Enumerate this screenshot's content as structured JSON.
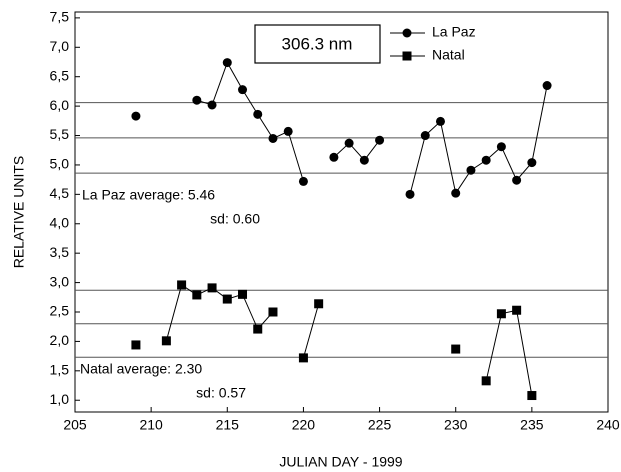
{
  "chart_data": {
    "type": "line",
    "x_label": "JULIAN DAY  -  1999",
    "y_label": "RELATIVE UNITS",
    "box_label": "306.3 nm",
    "xlim": [
      205,
      240
    ],
    "xticks": [
      205,
      210,
      215,
      220,
      225,
      230,
      235,
      240
    ],
    "ylim": [
      0.8,
      7.6
    ],
    "yticks": [
      {
        "value": 1.0,
        "label": "1,0"
      },
      {
        "value": 1.5,
        "label": "1,5"
      },
      {
        "value": 2.0,
        "label": "2,0"
      },
      {
        "value": 2.5,
        "label": "2,5"
      },
      {
        "value": 3.0,
        "label": "3,0"
      },
      {
        "value": 3.5,
        "label": "3,5"
      },
      {
        "value": 4.0,
        "label": "4,0"
      },
      {
        "value": 4.5,
        "label": "4,5"
      },
      {
        "value": 5.0,
        "label": "5,0"
      },
      {
        "value": 5.5,
        "label": "5,5"
      },
      {
        "value": 6.0,
        "label": "6,0"
      },
      {
        "value": 6.5,
        "label": "6,5"
      },
      {
        "value": 7.0,
        "label": "7,0"
      },
      {
        "value": 7.5,
        "label": "7,5"
      }
    ],
    "grid": false,
    "legend": "top-right",
    "series": [
      {
        "name": "La Paz",
        "color": "#000000",
        "marker": "circle",
        "x": [
          209,
          210,
          211,
          212,
          213,
          214,
          215,
          216,
          217,
          218,
          219,
          220,
          221,
          222,
          223,
          224,
          225,
          226,
          227,
          228,
          229,
          230,
          231,
          232,
          233,
          234,
          235,
          236
        ],
        "values": [
          5.83,
          null,
          null,
          null,
          6.1,
          6.02,
          6.74,
          6.28,
          5.86,
          5.45,
          5.57,
          4.72,
          null,
          5.13,
          5.37,
          5.08,
          5.42,
          null,
          4.5,
          5.5,
          5.74,
          4.52,
          4.91,
          5.08,
          5.31,
          4.74,
          5.04,
          6.35
        ]
      },
      {
        "name": "Natal",
        "color": "#000000",
        "marker": "square",
        "x": [
          209,
          210,
          211,
          212,
          213,
          214,
          215,
          216,
          217,
          218,
          219,
          220,
          221,
          222,
          223,
          224,
          225,
          226,
          227,
          228,
          229,
          230,
          231,
          232,
          233,
          234,
          235
        ],
        "values": [
          1.94,
          null,
          2.01,
          2.96,
          2.79,
          2.91,
          2.72,
          2.8,
          2.21,
          2.5,
          null,
          1.72,
          2.64,
          null,
          null,
          null,
          null,
          null,
          null,
          null,
          null,
          1.87,
          null,
          1.33,
          2.47,
          2.53,
          1.08
        ]
      }
    ],
    "reference_lines": [
      6.06,
      5.46,
      4.86,
      2.87,
      2.3,
      1.73
    ],
    "annotations": [
      "La Paz average: 5.46",
      "sd: 0.60",
      "Natal average: 2.30",
      "sd: 0.57"
    ]
  }
}
